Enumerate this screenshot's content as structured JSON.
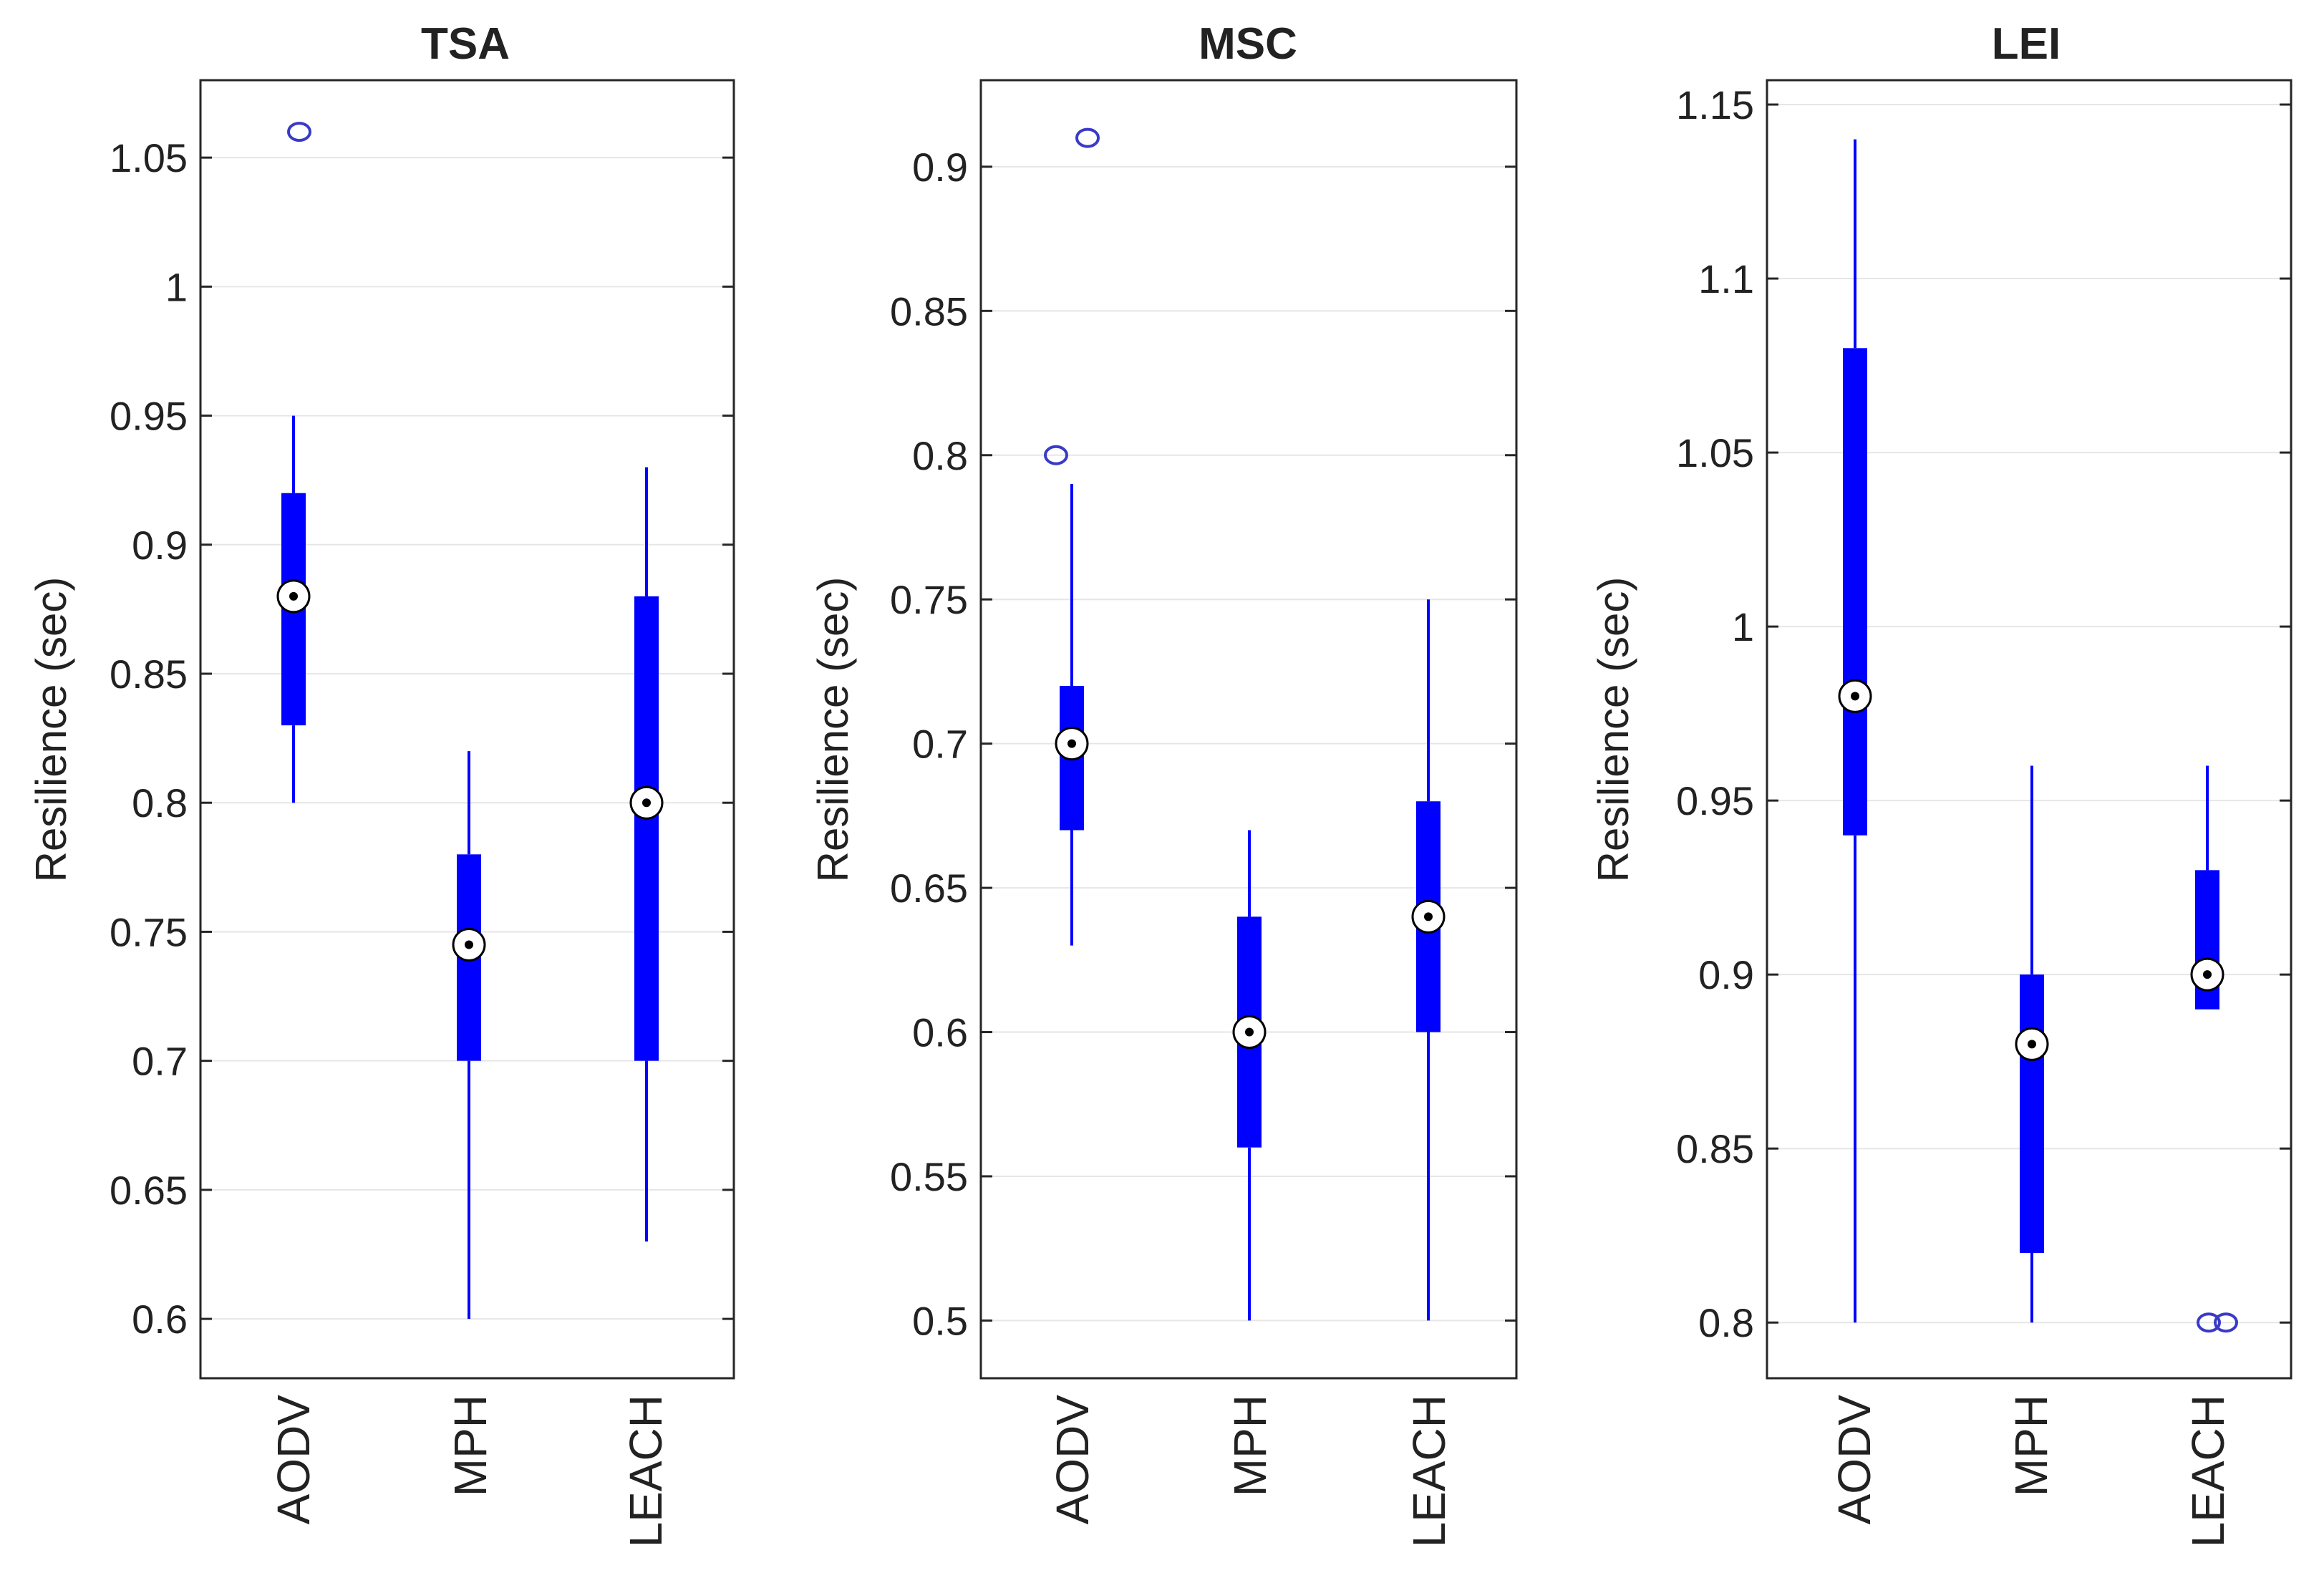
{
  "chart_data": [
    {
      "type": "box",
      "title": "TSA",
      "ylabel": "Resilience (sec)",
      "xlabel": "",
      "ylim": [
        0.577,
        1.08
      ],
      "yticks": [
        0.6,
        0.65,
        0.7,
        0.75,
        0.8,
        0.85,
        0.9,
        0.95,
        1,
        1.05
      ],
      "ytick_labels": [
        "0.6",
        "0.65",
        "0.7",
        "0.75",
        "0.8",
        "0.85",
        "0.9",
        "0.95",
        "1",
        "1.05"
      ],
      "grid": true,
      "categories": [
        "AODV",
        "MPH",
        "LEACH"
      ],
      "series": [
        {
          "name": "AODV",
          "whisker_low": 0.8,
          "q1": 0.83,
          "median": 0.88,
          "q3": 0.92,
          "whisker_high": 0.95,
          "outliers": [
            1.06
          ]
        },
        {
          "name": "MPH",
          "whisker_low": 0.6,
          "q1": 0.7,
          "median": 0.745,
          "q3": 0.78,
          "whisker_high": 0.82,
          "outliers": []
        },
        {
          "name": "LEACH",
          "whisker_low": 0.63,
          "q1": 0.7,
          "median": 0.8,
          "q3": 0.88,
          "whisker_high": 0.93,
          "outliers": []
        }
      ]
    },
    {
      "type": "box",
      "title": "MSC",
      "ylabel": "Resilience (sec)",
      "xlabel": "",
      "ylim": [
        0.48,
        0.93
      ],
      "yticks": [
        0.5,
        0.55,
        0.6,
        0.65,
        0.7,
        0.75,
        0.8,
        0.85,
        0.9
      ],
      "ytick_labels": [
        "0.5",
        "0.55",
        "0.6",
        "0.65",
        "0.7",
        "0.75",
        "0.8",
        "0.85",
        "0.9"
      ],
      "grid": true,
      "categories": [
        "AODV",
        "MPH",
        "LEACH"
      ],
      "series": [
        {
          "name": "AODV",
          "whisker_low": 0.63,
          "q1": 0.67,
          "median": 0.7,
          "q3": 0.72,
          "whisker_high": 0.79,
          "outliers": [
            0.8,
            0.91
          ]
        },
        {
          "name": "MPH",
          "whisker_low": 0.5,
          "q1": 0.56,
          "median": 0.6,
          "q3": 0.64,
          "whisker_high": 0.67,
          "outliers": []
        },
        {
          "name": "LEACH",
          "whisker_low": 0.5,
          "q1": 0.6,
          "median": 0.64,
          "q3": 0.68,
          "whisker_high": 0.75,
          "outliers": []
        }
      ]
    },
    {
      "type": "box",
      "title": "LEI",
      "ylabel": "Resilience (sec)",
      "xlabel": "",
      "ylim": [
        0.784,
        1.157
      ],
      "yticks": [
        0.8,
        0.85,
        0.9,
        0.95,
        1,
        1.05,
        1.1,
        1.15
      ],
      "ytick_labels": [
        "0.8",
        "0.85",
        "0.9",
        "0.95",
        "1",
        "1.05",
        "1.1",
        "1.15"
      ],
      "grid": true,
      "categories": [
        "AODV",
        "MPH",
        "LEACH"
      ],
      "series": [
        {
          "name": "AODV",
          "whisker_low": 0.8,
          "q1": 0.94,
          "median": 0.98,
          "q3": 1.08,
          "whisker_high": 1.14,
          "outliers": []
        },
        {
          "name": "MPH",
          "whisker_low": 0.8,
          "q1": 0.82,
          "median": 0.88,
          "q3": 0.9,
          "whisker_high": 0.96,
          "outliers": []
        },
        {
          "name": "LEACH",
          "whisker_low": 0.89,
          "q1": 0.89,
          "median": 0.9,
          "q3": 0.93,
          "whisker_high": 0.96,
          "outliers": [
            0.8,
            0.8
          ]
        }
      ]
    }
  ],
  "colors": {
    "box": "#0000ff",
    "outlier": "#3a3ac8",
    "grid": "#e6e6e6",
    "axes": "#262626",
    "median_ring": "#ffffff",
    "median_dot": "#000000"
  }
}
